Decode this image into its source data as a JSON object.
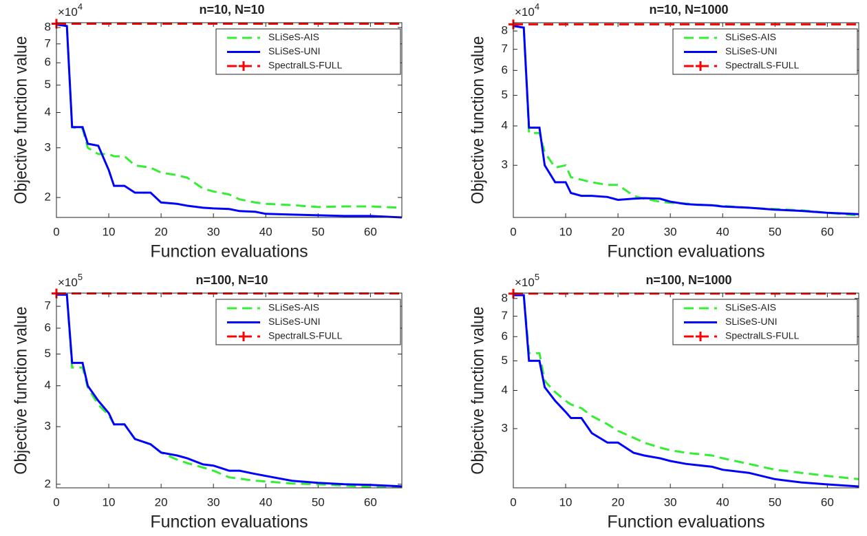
{
  "chart_data": [
    {
      "type": "line",
      "title": "n=10, N=10",
      "xlabel": "Function evaluations",
      "ylabel": "Objective function value",
      "y_multiplier": {
        "base": "×10",
        "exponent": "4"
      },
      "y_scale": "log",
      "legend": "upper right",
      "x": [
        0,
        2,
        3,
        5,
        6,
        8,
        10,
        11,
        13,
        15,
        18,
        20,
        23,
        25,
        28,
        30,
        33,
        35,
        38,
        40,
        45,
        50,
        55,
        60,
        66
      ],
      "xlim": [
        0,
        66
      ],
      "xticks": [
        0,
        10,
        20,
        30,
        40,
        50,
        60
      ],
      "ylim": [
        1.7,
        8.32
      ],
      "yticks": [
        2,
        3,
        4,
        5,
        6,
        7,
        8
      ],
      "series": [
        {
          "name": "SLiSeS-AIS",
          "color": "#33ee33",
          "linestyle": "dashed",
          "values": [
            8.2,
            8.1,
            3.55,
            3.5,
            3.0,
            2.85,
            2.85,
            2.8,
            2.8,
            2.6,
            2.55,
            2.45,
            2.4,
            2.35,
            2.15,
            2.1,
            2.05,
            1.97,
            1.92,
            1.9,
            1.88,
            1.85,
            1.86,
            1.86,
            1.84
          ]
        },
        {
          "name": "SLiSeS-UNI",
          "color": "#0000ff",
          "linestyle": "solid",
          "values": [
            8.2,
            8.1,
            3.55,
            3.55,
            3.1,
            3.05,
            2.5,
            2.2,
            2.2,
            2.08,
            2.08,
            1.92,
            1.9,
            1.87,
            1.84,
            1.83,
            1.82,
            1.79,
            1.78,
            1.75,
            1.74,
            1.73,
            1.72,
            1.72,
            1.7
          ]
        },
        {
          "name": "SpectralLS-FULL",
          "color": "#ff0000",
          "linestyle": "dashed",
          "marker": "+",
          "values": [
            8.25,
            8.25,
            8.25,
            8.25,
            8.25,
            8.25,
            8.25,
            8.25,
            8.25,
            8.25,
            8.25,
            8.25,
            8.25,
            8.25,
            8.25,
            8.25,
            8.25,
            8.25,
            8.25,
            8.25,
            8.25,
            8.25,
            8.25,
            8.25,
            8.25
          ]
        }
      ]
    },
    {
      "type": "line",
      "title": "n=10, N=1000",
      "xlabel": "Function evaluations",
      "ylabel": "Objective function value",
      "y_multiplier": {
        "base": "×10",
        "exponent": "4"
      },
      "y_scale": "log",
      "legend": "upper right",
      "x": [
        0,
        2,
        3,
        5,
        6,
        8,
        10,
        11,
        13,
        15,
        18,
        20,
        23,
        25,
        28,
        30,
        33,
        35,
        38,
        40,
        45,
        50,
        55,
        60,
        66
      ],
      "xlim": [
        0,
        66
      ],
      "xticks": [
        0,
        10,
        20,
        30,
        40,
        50,
        60
      ],
      "ylim": [
        2.05,
        8.5
      ],
      "yticks": [
        3,
        4,
        5,
        6,
        7,
        8
      ],
      "series": [
        {
          "name": "SLiSeS-AIS",
          "color": "#33ee33",
          "linestyle": "dashed",
          "values": [
            8.3,
            8.2,
            3.8,
            3.8,
            3.3,
            2.95,
            3.0,
            2.75,
            2.7,
            2.65,
            2.6,
            2.6,
            2.4,
            2.35,
            2.3,
            2.28,
            2.27,
            2.25,
            2.24,
            2.23,
            2.2,
            2.18,
            2.16,
            2.12,
            2.08
          ]
        },
        {
          "name": "SLiSeS-UNI",
          "color": "#0000ff",
          "linestyle": "solid",
          "values": [
            8.3,
            8.2,
            3.95,
            3.95,
            3.0,
            2.65,
            2.65,
            2.45,
            2.4,
            2.4,
            2.38,
            2.33,
            2.35,
            2.36,
            2.35,
            2.3,
            2.26,
            2.25,
            2.24,
            2.22,
            2.2,
            2.17,
            2.15,
            2.12,
            2.1
          ]
        },
        {
          "name": "SpectralLS-FULL",
          "color": "#ff0000",
          "linestyle": "dashed",
          "marker": "+",
          "values": [
            8.4,
            8.4,
            8.4,
            8.4,
            8.4,
            8.4,
            8.4,
            8.4,
            8.4,
            8.4,
            8.4,
            8.4,
            8.4,
            8.4,
            8.4,
            8.4,
            8.4,
            8.4,
            8.4,
            8.4,
            8.4,
            8.4,
            8.4,
            8.4,
            8.4
          ]
        }
      ]
    },
    {
      "type": "line",
      "title": "n=100, N=10",
      "xlabel": "Function evaluations",
      "ylabel": "Objective function value",
      "y_multiplier": {
        "base": "×10",
        "exponent": "5"
      },
      "y_scale": "log",
      "legend": "upper right",
      "x": [
        0,
        2,
        3,
        5,
        6,
        8,
        10,
        11,
        13,
        15,
        18,
        20,
        23,
        25,
        28,
        30,
        33,
        35,
        38,
        40,
        45,
        50,
        55,
        60,
        66
      ],
      "xlim": [
        0,
        66
      ],
      "xticks": [
        0,
        10,
        20,
        30,
        40,
        50,
        60
      ],
      "ylim": [
        1.95,
        7.68
      ],
      "yticks": [
        2,
        3,
        4,
        5,
        6,
        7
      ],
      "series": [
        {
          "name": "SLiSeS-AIS",
          "color": "#33ee33",
          "linestyle": "dashed",
          "values": [
            7.6,
            7.6,
            4.55,
            4.55,
            3.95,
            3.5,
            3.25,
            3.05,
            3.05,
            2.75,
            2.65,
            2.5,
            2.38,
            2.32,
            2.25,
            2.2,
            2.1,
            2.08,
            2.05,
            2.04,
            2.01,
            2.0,
            1.98,
            1.96,
            1.96
          ]
        },
        {
          "name": "SLiSeS-UNI",
          "color": "#0000ff",
          "linestyle": "solid",
          "values": [
            7.6,
            7.6,
            4.7,
            4.7,
            4.0,
            3.6,
            3.3,
            3.05,
            3.05,
            2.75,
            2.65,
            2.5,
            2.45,
            2.4,
            2.3,
            2.28,
            2.2,
            2.2,
            2.15,
            2.12,
            2.05,
            2.02,
            2.0,
            1.99,
            1.97
          ]
        },
        {
          "name": "SpectralLS-FULL",
          "color": "#ff0000",
          "linestyle": "dashed",
          "marker": "+",
          "values": [
            7.66,
            7.66,
            7.66,
            7.66,
            7.66,
            7.66,
            7.66,
            7.66,
            7.66,
            7.66,
            7.66,
            7.66,
            7.66,
            7.66,
            7.66,
            7.66,
            7.66,
            7.66,
            7.66,
            7.66,
            7.66,
            7.66,
            7.66,
            7.66,
            7.66
          ]
        }
      ]
    },
    {
      "type": "line",
      "title": "n=100, N=1000",
      "xlabel": "Function evaluations",
      "ylabel": "Objective function value",
      "y_multiplier": {
        "base": "×10",
        "exponent": "5"
      },
      "y_scale": "log",
      "legend": "upper right",
      "x": [
        0,
        2,
        3,
        5,
        6,
        8,
        10,
        11,
        13,
        15,
        18,
        20,
        23,
        25,
        28,
        30,
        33,
        35,
        38,
        40,
        45,
        50,
        55,
        60,
        66
      ],
      "xlim": [
        0,
        66
      ],
      "xticks": [
        0,
        10,
        20,
        30,
        40,
        50,
        60
      ],
      "ylim": [
        1.92,
        8.33
      ],
      "yticks": [
        3,
        4,
        5,
        6,
        7,
        8
      ],
      "series": [
        {
          "name": "SLiSeS-AIS",
          "color": "#33ee33",
          "linestyle": "dashed",
          "values": [
            8.2,
            8.2,
            5.3,
            5.3,
            4.3,
            3.95,
            3.7,
            3.6,
            3.5,
            3.3,
            3.1,
            2.95,
            2.8,
            2.7,
            2.6,
            2.55,
            2.5,
            2.48,
            2.45,
            2.4,
            2.3,
            2.2,
            2.15,
            2.1,
            2.05
          ]
        },
        {
          "name": "SLiSeS-UNI",
          "color": "#0000ff",
          "linestyle": "solid",
          "values": [
            8.2,
            8.2,
            5.0,
            5.0,
            4.1,
            3.7,
            3.4,
            3.25,
            3.25,
            2.9,
            2.7,
            2.7,
            2.5,
            2.45,
            2.4,
            2.35,
            2.3,
            2.28,
            2.25,
            2.2,
            2.15,
            2.05,
            2.0,
            1.97,
            1.94
          ]
        },
        {
          "name": "SpectralLS-FULL",
          "color": "#ff0000",
          "linestyle": "dashed",
          "marker": "+",
          "values": [
            8.3,
            8.3,
            8.3,
            8.3,
            8.3,
            8.3,
            8.3,
            8.3,
            8.3,
            8.3,
            8.3,
            8.3,
            8.3,
            8.3,
            8.3,
            8.3,
            8.3,
            8.3,
            8.3,
            8.3,
            8.3,
            8.3,
            8.3,
            8.3,
            8.3
          ]
        }
      ]
    }
  ]
}
